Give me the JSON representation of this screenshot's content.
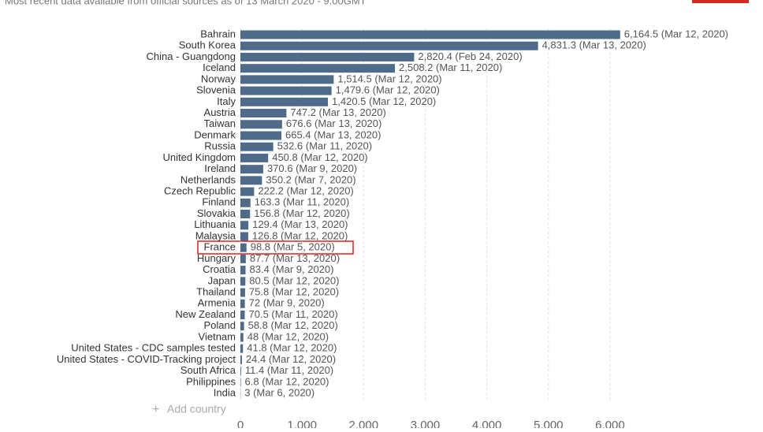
{
  "chart_data": {
    "type": "bar",
    "orientation": "horizontal",
    "subtitle": "Most recent data available from official sources as of 13 March 2020 - 9.00GMT",
    "add_country": "Add country",
    "color": "#4e6b8a",
    "categories": [
      "Bahrain",
      "South Korea",
      "China - Guangdong",
      "Iceland",
      "Norway",
      "Slovenia",
      "Italy",
      "Austria",
      "Taiwan",
      "Denmark",
      "Russia",
      "United Kingdom",
      "Ireland",
      "Netherlands",
      "Czech Republic",
      "Finland",
      "Slovakia",
      "Lithuania",
      "Malaysia",
      "France",
      "Hungary",
      "Croatia",
      "Japan",
      "Thailand",
      "Armenia",
      "New Zealand",
      "Poland",
      "Vietnam",
      "United States - CDC samples tested",
      "United States - COVID-Tracking project",
      "South Africa",
      "Philippines",
      "India"
    ],
    "values": [
      6164.5,
      4831.3,
      2820.4,
      2508.2,
      1514.5,
      1479.6,
      1420.5,
      747.2,
      676.6,
      665.4,
      532.6,
      450.8,
      370.6,
      350.2,
      222.2,
      163.3,
      156.8,
      129.4,
      126.8,
      98.8,
      87.7,
      83.4,
      80.5,
      75.8,
      72,
      70.5,
      58.8,
      48,
      41.8,
      24.4,
      11.4,
      6.8,
      3
    ],
    "value_labels": [
      "6,164.5 (Mar 12, 2020)",
      "4,831.3 (Mar 13, 2020)",
      "2,820.4 (Feb 24, 2020)",
      "2,508.2 (Mar 11, 2020)",
      "1,514.5 (Mar 12, 2020)",
      "1,479.6 (Mar 12, 2020)",
      "1,420.5 (Mar 12, 2020)",
      "747.2 (Mar 13, 2020)",
      "676.6 (Mar 13, 2020)",
      "665.4 (Mar 13, 2020)",
      "532.6 (Mar 11, 2020)",
      "450.8 (Mar 12, 2020)",
      "370.6 (Mar 9, 2020)",
      "350.2 (Mar 7, 2020)",
      "222.2 (Mar 12, 2020)",
      "163.3 (Mar 11, 2020)",
      "156.8 (Mar 12, 2020)",
      "129.4 (Mar 13, 2020)",
      "126.8 (Mar 12, 2020)",
      "98.8 (Mar 5, 2020)",
      "87.7 (Mar 13, 2020)",
      "83.4 (Mar 9, 2020)",
      "80.5 (Mar 12, 2020)",
      "75.8 (Mar 12, 2020)",
      "72 (Mar 9, 2020)",
      "70.5 (Mar 11, 2020)",
      "58.8 (Mar 12, 2020)",
      "48 (Mar 12, 2020)",
      "41.8 (Mar 12, 2020)",
      "24.4 (Mar 12, 2020)",
      "11.4 (Mar 11, 2020)",
      "6.8 (Mar 12, 2020)",
      "3 (Mar 6, 2020)"
    ],
    "xlim": [
      0,
      6500
    ],
    "xticks": [
      0,
      {
        "value": 1000,
        "label": "1,000"
      },
      {
        "value": 2000,
        "label": "2,000"
      },
      {
        "value": 3000,
        "label": "3,000"
      },
      {
        "value": 4000,
        "label": "4,000"
      },
      {
        "value": 5000,
        "label": "5,000"
      },
      {
        "value": 6000,
        "label": "6,000"
      }
    ],
    "grid": true
  }
}
